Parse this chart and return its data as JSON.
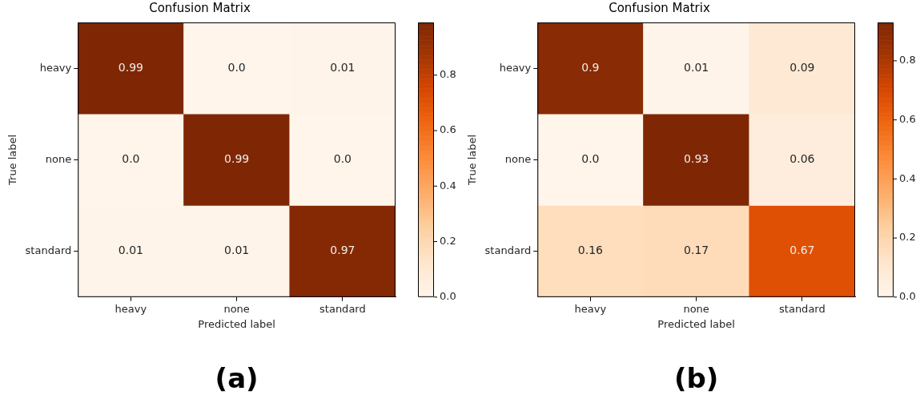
{
  "chart_data": [
    {
      "type": "heatmap",
      "title": "Confusion Matrix",
      "xlabel": "Predicted label",
      "ylabel": "True label",
      "categories": [
        "heavy",
        "none",
        "standard"
      ],
      "y_categories": [
        "heavy",
        "none",
        "standard"
      ],
      "cells": [
        [
          0.99,
          0.0,
          0.01
        ],
        [
          0.0,
          0.99,
          0.0
        ],
        [
          0.01,
          0.01,
          0.97
        ]
      ],
      "cell_labels": [
        [
          "0.99",
          "0.0",
          "0.01"
        ],
        [
          "0.0",
          "0.99",
          "0.0"
        ],
        [
          "0.01",
          "0.01",
          "0.97"
        ]
      ],
      "clim": [
        0,
        0.99
      ],
      "cticks": [
        {
          "value": 0,
          "label": "0.0"
        },
        0.2,
        0.4,
        0.6,
        0.8
      ],
      "annotations": [
        "(a)"
      ]
    },
    {
      "type": "heatmap",
      "title": "Confusion Matrix",
      "xlabel": "Predicted label",
      "ylabel": "True label",
      "categories": [
        "heavy",
        "none",
        "standard"
      ],
      "y_categories": [
        "heavy",
        "none",
        "standard"
      ],
      "cells": [
        [
          0.9,
          0.01,
          0.09
        ],
        [
          0.0,
          0.93,
          0.06
        ],
        [
          0.16,
          0.17,
          0.67
        ]
      ],
      "cell_labels": [
        [
          "0.9",
          "0.01",
          "0.09"
        ],
        [
          "0.0",
          "0.93",
          "0.06"
        ],
        [
          "0.16",
          "0.17",
          "0.67"
        ]
      ],
      "clim": [
        0,
        0.93
      ],
      "cticks": [
        {
          "value": 0,
          "label": "0.0"
        },
        0.2,
        0.4,
        0.6,
        0.8
      ],
      "annotations": [
        "(b)"
      ]
    }
  ]
}
